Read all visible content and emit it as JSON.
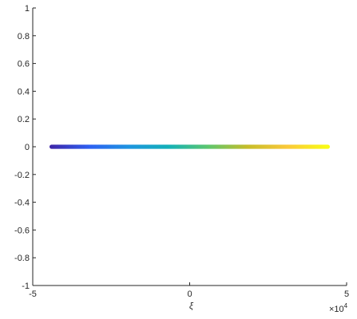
{
  "chart_data": {
    "type": "scatter",
    "title": "",
    "xlabel": "ξ",
    "ylabel": "",
    "xlim": [
      -5,
      5
    ],
    "ylim": [
      -1,
      1
    ],
    "x_exponent_label": "×10",
    "x_exponent_power": "4",
    "x_ticks": [
      -5,
      0,
      5
    ],
    "x_tick_labels": [
      "-5",
      "0",
      "5"
    ],
    "y_ticks": [
      -1,
      -0.8,
      -0.6,
      -0.4,
      -0.2,
      0,
      0.2,
      0.4,
      0.6,
      0.8,
      1
    ],
    "y_tick_labels": [
      "-1",
      "-0.8",
      "-0.6",
      "-0.4",
      "-0.2",
      "0",
      "0.2",
      "0.4",
      "0.6",
      "0.8",
      "1"
    ],
    "grid": false,
    "colormap": "parula",
    "colormap_stops": [
      "#3e26a8",
      "#2e60f2",
      "#1e95e0",
      "#13b1b8",
      "#5cc66e",
      "#c6bd2a",
      "#fac83a",
      "#f9fb15"
    ],
    "series": [
      {
        "x_range": [
          -4.4,
          4.4
        ],
        "y": 0,
        "color_by": "x"
      }
    ]
  }
}
